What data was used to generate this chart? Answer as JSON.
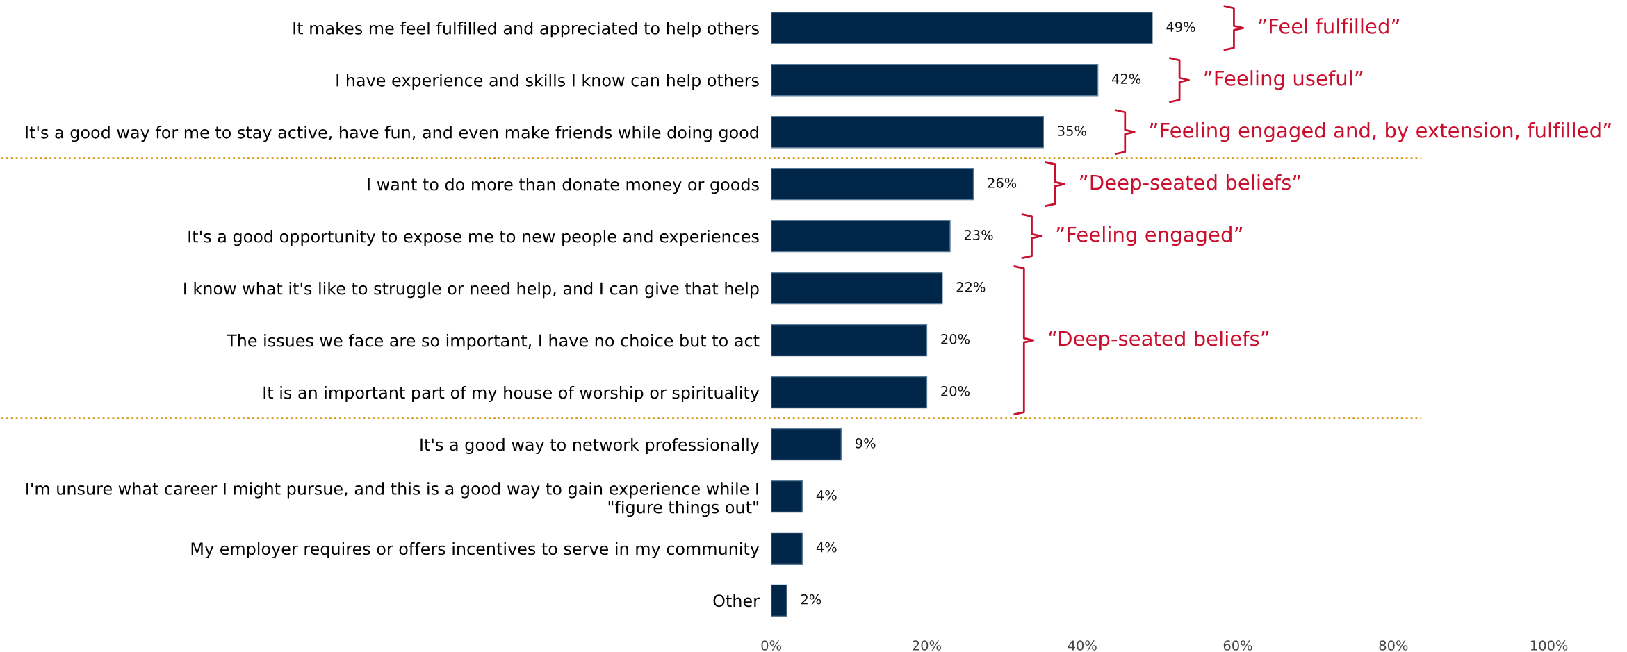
{
  "chart_data": {
    "type": "bar",
    "orientation": "horizontal",
    "categories": [
      "It makes me feel fulfilled and appreciated to help others",
      "I have experience and skills I know can help others",
      "It's a good way for me to stay active, have fun, and even make friends while doing good",
      "I want to do more than donate money or goods",
      "It's a good opportunity to expose me to new people and experiences",
      "I know what it's like to struggle or need help, and I can give that help",
      "The issues we face are so important, I have no choice but to act",
      "It is an important part of my house of worship or spirituality",
      "It's a good way to network professionally",
      "I'm unsure what career I might pursue, and this is a good way to gain experience while I\n\"figure things out\"",
      "My employer requires or offers incentives to serve in my community",
      "Other"
    ],
    "values": [
      49,
      42,
      35,
      26,
      23,
      22,
      20,
      20,
      9,
      4,
      4,
      2
    ],
    "value_labels": [
      "49%",
      "42%",
      "35%",
      "26%",
      "23%",
      "22%",
      "20%",
      "20%",
      "9%",
      "4%",
      "4%",
      "2%"
    ],
    "color": "#00274a",
    "xlim": [
      0,
      100
    ],
    "xticks": [
      {
        "value": 0,
        "label": "0%"
      },
      {
        "value": 20,
        "label": "20%"
      },
      {
        "value": 40,
        "label": "40%"
      },
      {
        "value": 60,
        "label": "60%"
      },
      {
        "value": 80,
        "label": "80%"
      },
      {
        "value": 100,
        "label": "100%"
      }
    ],
    "grid": false,
    "annotations": [
      "”Feel fulfilled”",
      "”Feeling useful”",
      "”Feeling engaged and, by extension, fulfilled”",
      "”Deep-seated beliefs”",
      "”Feeling engaged”",
      "“Deep-seated beliefs”"
    ]
  }
}
